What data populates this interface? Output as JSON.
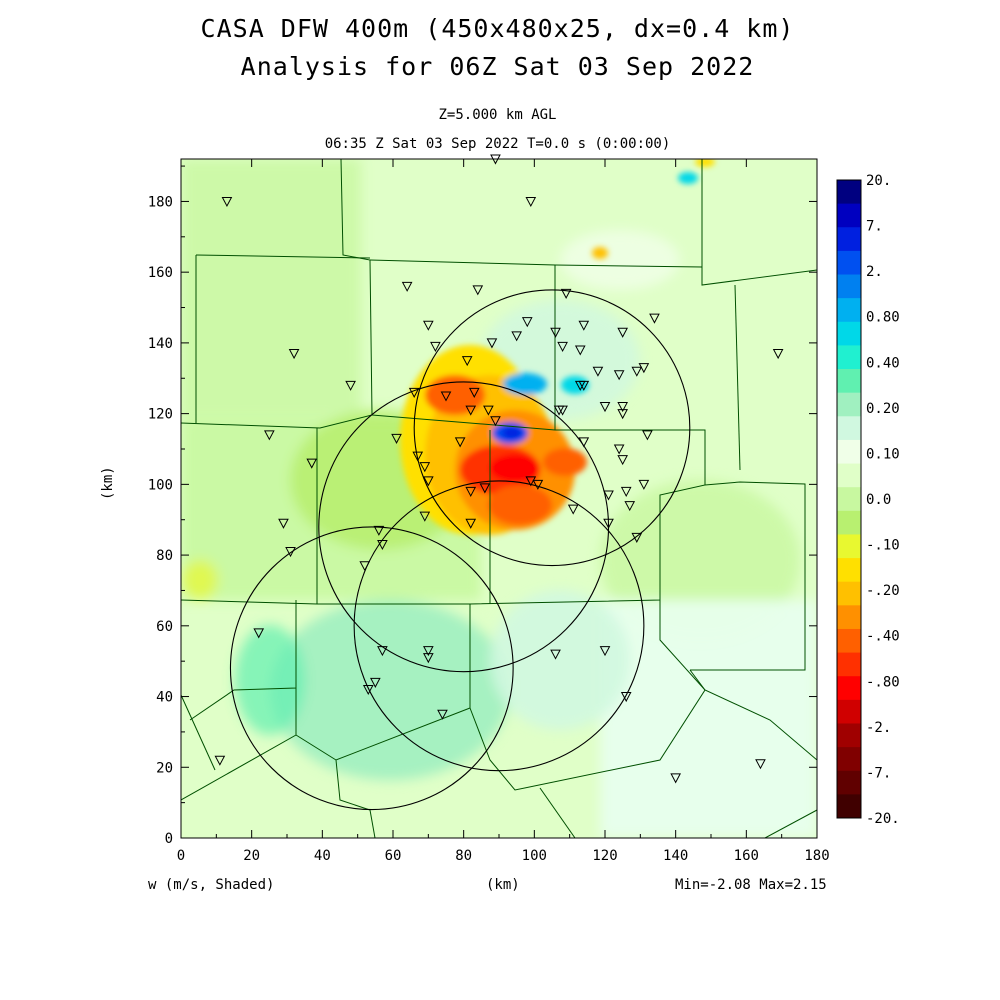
{
  "title_line1": "CASA DFW 400m (450x480x25, dx=0.4 km)",
  "title_line2": "Analysis for 06Z Sat 03 Sep 2022",
  "subtitle_level": "Z=5.000 km AGL",
  "subtitle_time": "06:35 Z Sat 03 Sep 2022    T=0.0 s (0:00:00)",
  "x_axis": {
    "label": "(km)",
    "range": [
      0,
      180
    ],
    "ticks": [
      "0",
      "20",
      "40",
      "60",
      "80",
      "100",
      "120",
      "140",
      "160",
      "180"
    ]
  },
  "y_axis": {
    "label": "(km)",
    "range": [
      0,
      192
    ],
    "ticks": [
      "0",
      "20",
      "40",
      "60",
      "80",
      "100",
      "120",
      "140",
      "160",
      "180"
    ]
  },
  "field_label": "w (m/s, Shaded)",
  "min_max": "Min=-2.08 Max=2.15",
  "colorbar": {
    "labels": [
      "20.",
      "7.",
      "2.",
      "0.80",
      "0.40",
      "0.20",
      "0.10",
      "0.0",
      "-.10",
      "-.20",
      "-.40",
      "-.80",
      "-2.",
      "-7.",
      "-20."
    ],
    "colors": [
      "#000080",
      "#0000c0",
      "#0020e0",
      "#0050f0",
      "#0080f0",
      "#00b0f0",
      "#00d8e8",
      "#20f0d0",
      "#60f0b0",
      "#a0f0c0",
      "#d0f8e0",
      "#f0ffe8",
      "#e0ffc8",
      "#c8f8a0",
      "#b8f070",
      "#e8f830",
      "#ffe000",
      "#ffc000",
      "#ff9000",
      "#ff6000",
      "#ff3000",
      "#ff0000",
      "#d00000",
      "#a00000",
      "#800000",
      "#600000",
      "#400000"
    ]
  },
  "radar_rings_km": [
    {
      "cx": 105,
      "cy": 116,
      "r": 39
    },
    {
      "cx": 80,
      "cy": 88,
      "r": 41
    },
    {
      "cx": 90,
      "cy": 60,
      "r": 41
    },
    {
      "cx": 54,
      "cy": 48,
      "r": 40
    }
  ],
  "stations_km": [
    [
      13,
      180
    ],
    [
      89,
      192
    ],
    [
      99,
      180
    ],
    [
      64,
      156
    ],
    [
      84,
      155
    ],
    [
      109,
      154
    ],
    [
      106,
      143
    ],
    [
      98,
      146
    ],
    [
      114,
      145
    ],
    [
      95,
      142
    ],
    [
      70,
      145
    ],
    [
      72,
      139
    ],
    [
      88,
      140
    ],
    [
      108,
      139
    ],
    [
      113,
      138
    ],
    [
      125,
      143
    ],
    [
      134,
      147
    ],
    [
      81,
      135
    ],
    [
      129,
      132
    ],
    [
      131,
      133
    ],
    [
      118,
      132
    ],
    [
      124,
      131
    ],
    [
      32,
      137
    ],
    [
      48,
      128
    ],
    [
      66,
      126
    ],
    [
      75,
      125
    ],
    [
      83,
      126
    ],
    [
      82,
      121
    ],
    [
      113,
      128
    ],
    [
      114,
      128
    ],
    [
      125,
      122
    ],
    [
      120,
      122
    ],
    [
      125,
      120
    ],
    [
      108,
      121
    ],
    [
      107,
      121
    ],
    [
      61,
      113
    ],
    [
      79,
      112
    ],
    [
      87,
      121
    ],
    [
      89,
      118
    ],
    [
      114,
      112
    ],
    [
      132,
      114
    ],
    [
      67,
      108
    ],
    [
      69,
      105
    ],
    [
      70,
      101
    ],
    [
      99,
      101
    ],
    [
      86,
      99
    ],
    [
      82,
      98
    ],
    [
      101,
      100
    ],
    [
      25,
      114
    ],
    [
      37,
      106
    ],
    [
      124,
      110
    ],
    [
      125,
      107
    ],
    [
      131,
      100
    ],
    [
      126,
      98
    ],
    [
      121,
      97
    ],
    [
      127,
      94
    ],
    [
      111,
      93
    ],
    [
      69,
      91
    ],
    [
      82,
      89
    ],
    [
      29,
      89
    ],
    [
      56,
      87
    ],
    [
      57,
      83
    ],
    [
      52,
      77
    ],
    [
      121,
      89
    ],
    [
      129,
      85
    ],
    [
      31,
      81
    ],
    [
      22,
      58
    ],
    [
      57,
      53
    ],
    [
      70,
      53
    ],
    [
      70,
      51
    ],
    [
      106,
      52
    ],
    [
      120,
      53
    ],
    [
      55,
      44
    ],
    [
      53,
      42
    ],
    [
      74,
      35
    ],
    [
      11,
      22
    ],
    [
      126,
      40
    ],
    [
      140,
      17
    ],
    [
      164,
      21
    ],
    [
      169,
      137
    ]
  ]
}
